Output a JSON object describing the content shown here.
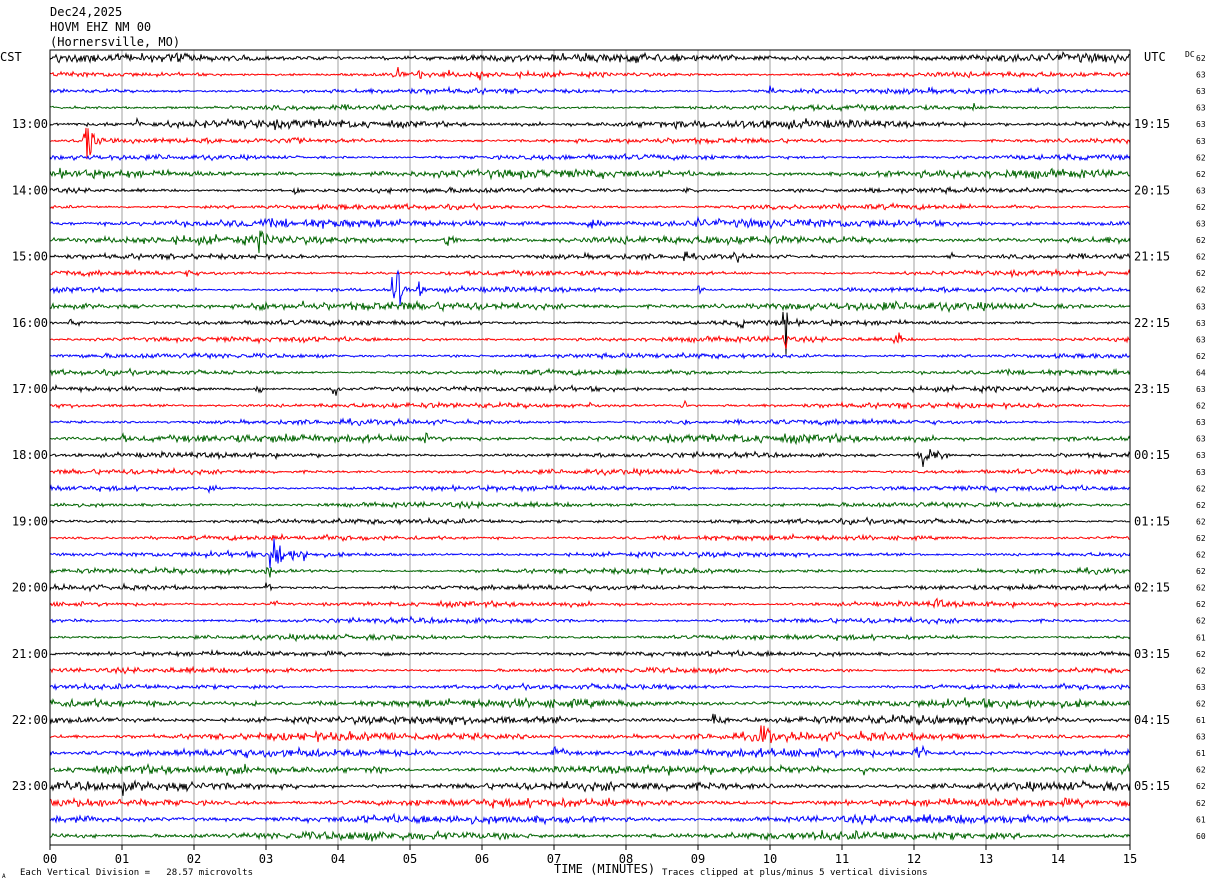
{
  "header": {
    "date": "Dec24,2025",
    "station": "HOVM EHZ NM 00",
    "location": "(Hornersville, MO)"
  },
  "left_timezone": "CST",
  "right_timezone": "UTC",
  "dc_label": "DC",
  "footer": {
    "xlabel": "TIME (MINUTES)",
    "scale_note": "Each Vertical Division =   28.57 microvolts",
    "clip_note": "Traces clipped at plus/minus 5 vertical divisions",
    "corner_mark": "A"
  },
  "colors": {
    "trace_cycle": [
      "#000000",
      "#ff0000",
      "#0000ff",
      "#006400"
    ],
    "grid": "#a0a0a0",
    "frame": "#000000"
  },
  "chart_data": {
    "type": "line",
    "subtype": "helicorder",
    "xlim": [
      0,
      15
    ],
    "x_ticks": [
      "00",
      "01",
      "02",
      "03",
      "04",
      "05",
      "06",
      "07",
      "08",
      "09",
      "10",
      "11",
      "12",
      "13",
      "14",
      "15"
    ],
    "minutes_per_line": 15,
    "line_count": 48,
    "cst_hour_labels": [
      "13:00",
      "14:00",
      "15:00",
      "16:00",
      "17:00",
      "18:00",
      "19:00",
      "20:00",
      "21:00",
      "22:00",
      "23:00"
    ],
    "utc_hour_labels": [
      "19:15",
      "20:15",
      "21:15",
      "22:15",
      "23:15",
      "00:15",
      "01:15",
      "02:15",
      "03:15",
      "04:15",
      "05:15"
    ],
    "first_labeled_line": 4,
    "lines_per_hour": 4,
    "dc_offsets": [
      "62",
      "63",
      "63",
      "63",
      "63",
      "63",
      "62",
      "62",
      "63",
      "62",
      "63",
      "62",
      "62",
      "62",
      "62",
      "63",
      "63",
      "63",
      "62",
      "64",
      "63",
      "62",
      "63",
      "63",
      "63",
      "63",
      "62",
      "62",
      "62",
      "62",
      "62",
      "62",
      "62",
      "62",
      "62",
      "61",
      "62",
      "62",
      "63",
      "62",
      "61",
      "63",
      "61",
      "62",
      "62",
      "62",
      "61",
      "60"
    ],
    "events": [
      {
        "line": 1,
        "minute": 4.8,
        "amp": 6,
        "dur": 0.35
      },
      {
        "line": 1,
        "minute": 5.12,
        "amp": 7,
        "dur": 0.15
      },
      {
        "line": 1,
        "minute": 5.5,
        "amp": 6,
        "dur": 0.15
      },
      {
        "line": 1,
        "minute": 5.95,
        "amp": 9,
        "dur": 0.15
      },
      {
        "line": 2,
        "minute": 10,
        "amp": 3,
        "dur": 0.4
      },
      {
        "line": 3,
        "minute": 12.8,
        "amp": 4,
        "dur": 0.3
      },
      {
        "line": 4,
        "minute": 1.2,
        "amp": 4,
        "dur": 0.3
      },
      {
        "line": 5,
        "minute": 0.5,
        "amp": 20,
        "dur": 0.3
      },
      {
        "line": 5,
        "minute": 3.4,
        "amp": 8,
        "dur": 0.2
      },
      {
        "line": 8,
        "minute": 3.4,
        "amp": 5,
        "dur": 0.2
      },
      {
        "line": 8,
        "minute": 8.8,
        "amp": 4,
        "dur": 0.6
      },
      {
        "line": 10,
        "minute": 5,
        "amp": 7,
        "dur": 0.2
      },
      {
        "line": 10,
        "minute": 6,
        "amp": 4,
        "dur": 0.3
      },
      {
        "line": 10,
        "minute": 7.5,
        "amp": 6,
        "dur": 0.6
      },
      {
        "line": 10,
        "minute": 9.0,
        "amp": 7,
        "dur": 0.3
      },
      {
        "line": 11,
        "minute": 2.9,
        "amp": 8,
        "dur": 1.1
      },
      {
        "line": 11,
        "minute": 5.5,
        "amp": 8,
        "dur": 0.3
      },
      {
        "line": 11,
        "minute": 9.2,
        "amp": 5,
        "dur": 0.2
      },
      {
        "line": 12,
        "minute": 8.8,
        "amp": 5,
        "dur": 0.3
      },
      {
        "line": 12,
        "minute": 9.5,
        "amp": 6,
        "dur": 0.3
      },
      {
        "line": 12,
        "minute": 12.5,
        "amp": 4,
        "dur": 0.2
      },
      {
        "line": 13,
        "minute": 1.9,
        "amp": 9,
        "dur": 0.1
      },
      {
        "line": 14,
        "minute": 4.8,
        "amp": 32,
        "dur": 0.2
      },
      {
        "line": 14,
        "minute": 5.12,
        "amp": 10,
        "dur": 0.12
      },
      {
        "line": 14,
        "minute": 9.0,
        "amp": 5,
        "dur": 0.2
      },
      {
        "line": 15,
        "minute": 2.8,
        "amp": 6,
        "dur": 0.8
      },
      {
        "line": 15,
        "minute": 3.5,
        "amp": 6,
        "dur": 0.2
      },
      {
        "line": 16,
        "minute": 0.3,
        "amp": 7,
        "dur": 0.3
      },
      {
        "line": 16,
        "minute": 9.6,
        "amp": 9,
        "dur": 0.1
      },
      {
        "line": 16,
        "minute": 11.6,
        "amp": 7,
        "dur": 0.1
      },
      {
        "line": 16,
        "minute": 10.22,
        "amp": 24,
        "dur": 0.06
      },
      {
        "line": 17,
        "minute": 3.5,
        "amp": 7,
        "dur": 0.12
      },
      {
        "line": 17,
        "minute": 11.75,
        "amp": 12,
        "dur": 0.15
      },
      {
        "line": 17,
        "minute": 10.22,
        "amp": 14,
        "dur": 0.06
      },
      {
        "line": 20,
        "minute": 2.9,
        "amp": 7,
        "dur": 0.1
      },
      {
        "line": 20,
        "minute": 3.95,
        "amp": 14,
        "dur": 0.12
      },
      {
        "line": 21,
        "minute": 8.8,
        "amp": 6,
        "dur": 0.2
      },
      {
        "line": 21,
        "minute": 7.5,
        "amp": 4,
        "dur": 0.15
      },
      {
        "line": 22,
        "minute": 8.8,
        "amp": 4,
        "dur": 0.2
      },
      {
        "line": 23,
        "minute": 1.0,
        "amp": 4,
        "dur": 0.3
      },
      {
        "line": 23,
        "minute": 5.2,
        "amp": 4,
        "dur": 0.6
      },
      {
        "line": 23,
        "minute": 10.6,
        "amp": 4,
        "dur": 0.3
      },
      {
        "line": 24,
        "minute": 12.1,
        "amp": 10,
        "dur": 0.6
      },
      {
        "line": 26,
        "minute": 2.2,
        "amp": 4,
        "dur": 0.3
      },
      {
        "line": 30,
        "minute": 3.1,
        "amp": 20,
        "dur": 0.5
      },
      {
        "line": 30,
        "minute": 3.5,
        "amp": 8,
        "dur": 0.3
      },
      {
        "line": 31,
        "minute": 3.05,
        "amp": 12,
        "dur": 0.04
      },
      {
        "line": 32,
        "minute": 3.05,
        "amp": 12,
        "dur": 0.04
      },
      {
        "line": 33,
        "minute": 3.1,
        "amp": 5,
        "dur": 0.15
      },
      {
        "line": 33,
        "minute": 12.3,
        "amp": 6,
        "dur": 0.4
      },
      {
        "line": 37,
        "minute": 8.5,
        "amp": 3,
        "dur": 0.5
      },
      {
        "line": 38,
        "minute": 1.8,
        "amp": 4,
        "dur": 0.3
      },
      {
        "line": 39,
        "minute": 2.8,
        "amp": 4,
        "dur": 0.3
      },
      {
        "line": 40,
        "minute": 9.2,
        "amp": 5,
        "dur": 0.8
      },
      {
        "line": 40,
        "minute": 12.1,
        "amp": 6,
        "dur": 0.3
      },
      {
        "line": 41,
        "minute": 9.85,
        "amp": 12,
        "dur": 0.6
      },
      {
        "line": 41,
        "minute": 9.1,
        "amp": 5,
        "dur": 0.2
      },
      {
        "line": 42,
        "minute": 2.5,
        "amp": 8,
        "dur": 0.4
      },
      {
        "line": 42,
        "minute": 7.0,
        "amp": 7,
        "dur": 0.4
      },
      {
        "line": 42,
        "minute": 11.2,
        "amp": 6,
        "dur": 0.3
      },
      {
        "line": 42,
        "minute": 12.0,
        "amp": 11,
        "dur": 0.4
      },
      {
        "line": 43,
        "minute": 4.5,
        "amp": 8,
        "dur": 0.2
      },
      {
        "line": 43,
        "minute": 11.3,
        "amp": 5,
        "dur": 0.3
      },
      {
        "line": 44,
        "minute": 1.0,
        "amp": 7,
        "dur": 0.3
      },
      {
        "line": 44,
        "minute": 3.4,
        "amp": 4,
        "dur": 0.3
      },
      {
        "line": 45,
        "minute": 13.2,
        "amp": 4,
        "dur": 0.5
      },
      {
        "line": 46,
        "minute": 5.5,
        "amp": 4,
        "dur": 0.5
      },
      {
        "line": 47,
        "minute": 10.7,
        "amp": 7,
        "dur": 0.1
      }
    ],
    "noisy_lines": [
      0,
      4,
      7,
      10,
      11,
      15,
      23,
      39,
      40,
      41,
      42,
      43,
      44,
      45,
      46,
      47
    ]
  }
}
